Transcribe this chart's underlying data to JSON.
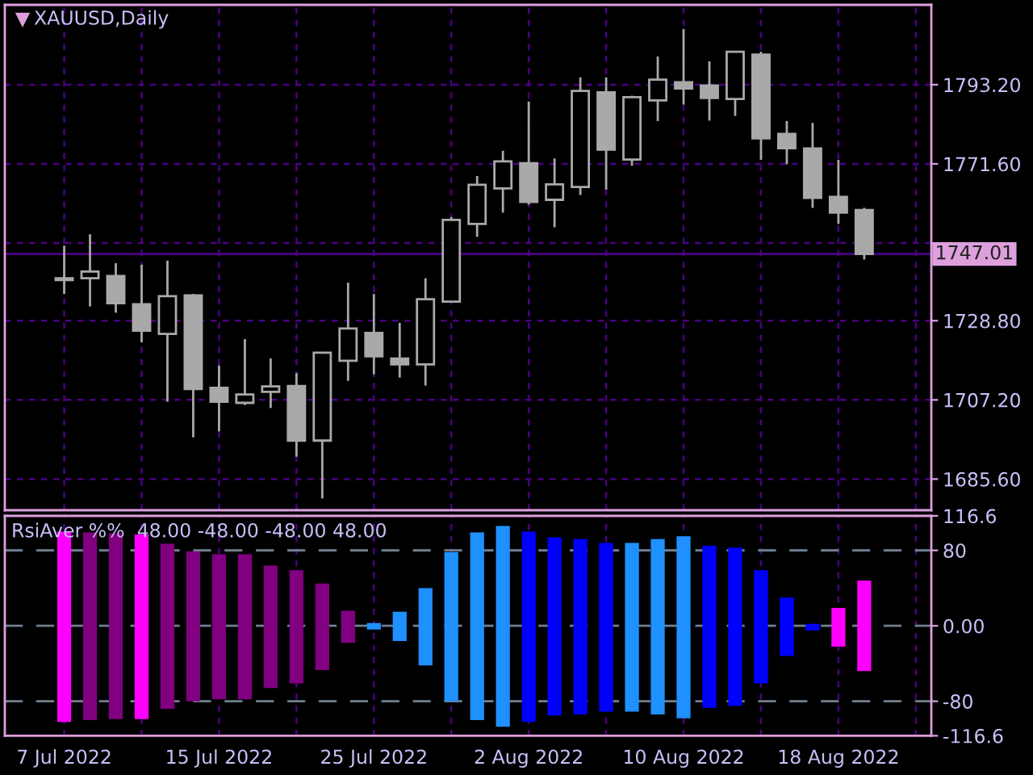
{
  "chart_data": [
    {
      "type": "candlestick",
      "title": "XAUUSD,Daily",
      "color": "#a9a9a9",
      "categories": [
        null,
        null,
        null,
        null,
        null,
        null,
        null,
        null,
        null,
        null,
        null,
        null,
        null,
        null,
        null,
        null,
        null,
        null,
        null,
        null,
        null,
        null,
        null,
        null,
        null,
        null,
        null,
        null,
        null,
        null,
        null,
        null
      ],
      "ohlc": [
        [
          1740.4,
          1749.3,
          1736.1,
          1739.9
        ],
        [
          1740.4,
          1752.4,
          1732.7,
          1742.2
        ],
        [
          1741.0,
          1744.5,
          1731.0,
          1733.6
        ],
        [
          1733.3,
          1744.1,
          1722.9,
          1726.1
        ],
        [
          1725.2,
          1745.2,
          1706.7,
          1735.5
        ],
        [
          1735.7,
          1736.1,
          1697.0,
          1710.2
        ],
        [
          1710.5,
          1716.6,
          1698.6,
          1706.7
        ],
        [
          1706.4,
          1723.8,
          1705.8,
          1708.7
        ],
        [
          1709.4,
          1718.5,
          1705.0,
          1710.9
        ],
        [
          1711.0,
          1714.5,
          1691.7,
          1696.1
        ],
        [
          1696.1,
          1720.1,
          1680.3,
          1720.1
        ],
        [
          1717.9,
          1739.2,
          1712.4,
          1726.7
        ],
        [
          1725.5,
          1736.1,
          1714.2,
          1719.1
        ],
        [
          1718.5,
          1728.2,
          1713.3,
          1716.9
        ],
        [
          1716.9,
          1740.4,
          1711.1,
          1734.7
        ],
        [
          1734.0,
          1757.1,
          1734.0,
          1756.3
        ],
        [
          1755.2,
          1768.3,
          1751.7,
          1765.9
        ],
        [
          1764.9,
          1775.2,
          1758.3,
          1772.3
        ],
        [
          1771.8,
          1788.6,
          1760.5,
          1761.2
        ],
        [
          1761.8,
          1773.1,
          1754.3,
          1766.0
        ],
        [
          1765.3,
          1795.2,
          1763.1,
          1791.5
        ],
        [
          1791.1,
          1795.2,
          1764.6,
          1775.5
        ],
        [
          1772.8,
          1790.2,
          1771.1,
          1789.8
        ],
        [
          1788.9,
          1800.9,
          1783.3,
          1794.6
        ],
        [
          1793.9,
          1808.4,
          1787.8,
          1792.2
        ],
        [
          1793.0,
          1799.6,
          1783.4,
          1789.6
        ],
        [
          1789.3,
          1802.2,
          1784.7,
          1802.2
        ],
        [
          1801.4,
          1802.2,
          1772.7,
          1778.6
        ],
        [
          1779.8,
          1783.3,
          1771.5,
          1775.9
        ],
        [
          1775.8,
          1782.8,
          1759.6,
          1762.3
        ],
        [
          1762.6,
          1772.7,
          1755.2,
          1758.3
        ],
        [
          1759.0,
          1759.6,
          1745.5,
          1747.01
        ]
      ],
      "ylim": [
        1677.1,
        1815.0
      ],
      "yticks": [
        {
          "value": 1685.6,
          "label": "1685.60"
        },
        {
          "value": 1707.2,
          "label": "1707.20"
        },
        {
          "value": 1728.8,
          "label": "1728.80"
        },
        {
          "value": 1750.0,
          "label": null
        },
        {
          "value": 1771.6,
          "label": "1771.60"
        },
        {
          "value": 1793.2,
          "label": "1793.20"
        }
      ],
      "ref_lines": [
        {
          "axis": "y",
          "value": 1747.01,
          "label": "1747.01",
          "color": "#4b0082",
          "line_style": "solid"
        }
      ],
      "grid": true,
      "tick_labels": "y"
    },
    {
      "type": "bar",
      "title": "RsiAver %%  48.00 -48.00 -48.00 48.00",
      "categories": [
        "7 Jul 2022",
        null,
        null,
        null,
        null,
        null,
        "15 Jul 2022",
        null,
        null,
        null,
        null,
        null,
        "25 Jul 2022",
        null,
        null,
        null,
        null,
        null,
        "2 Aug 2022",
        null,
        null,
        null,
        null,
        null,
        "10 Aug 2022",
        null,
        null,
        null,
        null,
        null,
        "18 Aug 2022",
        null
      ],
      "values": [
        202,
        199,
        197,
        196,
        175,
        159,
        154,
        154,
        130,
        120,
        92,
        34,
        7,
        31,
        82,
        158,
        199,
        213,
        202,
        189,
        186,
        179,
        179,
        186,
        193,
        172,
        168,
        120,
        62,
        7,
        41,
        96
      ],
      "base": [
        -102,
        -100,
        -99,
        -99,
        -88,
        -80,
        -78,
        -78,
        -66,
        -61,
        -47,
        -18,
        -4,
        -16,
        -42,
        -80,
        -100,
        -107,
        -102,
        -95,
        -94,
        -91,
        -91,
        -94,
        -98,
        -87,
        -85,
        -61,
        -32,
        -5,
        -22,
        -48
      ],
      "colors": [
        "#ff00ff",
        "#800080",
        "#800080",
        "#ff00ff",
        "#800080",
        "#800080",
        "#800080",
        "#800080",
        "#800080",
        "#800080",
        "#800080",
        "#800080",
        "#1e90ff",
        "#1e90ff",
        "#1e90ff",
        "#1e90ff",
        "#1e90ff",
        "#1e90ff",
        "#0000ff",
        "#0000ff",
        "#0000ff",
        "#0000ff",
        "#1e90ff",
        "#1e90ff",
        "#1e90ff",
        "#0000ff",
        "#0000ff",
        "#0000ff",
        "#0000ff",
        "#0000ff",
        "#ff00ff",
        "#ff00ff"
      ],
      "ylim": [
        -116.6,
        116.6
      ],
      "yticks": [
        -116.6,
        -80,
        {
          "value": 0,
          "label": "0.00"
        },
        80,
        116.6
      ],
      "ref_lines": [
        {
          "axis": "y",
          "value": 80,
          "color": "#708090",
          "line_style": "dashed"
        },
        {
          "axis": "y",
          "value": 0,
          "color": "#708090",
          "line_style": "dashed"
        },
        {
          "axis": "y",
          "value": -80,
          "color": "#708090",
          "line_style": "dashed"
        }
      ],
      "grid": "x"
    }
  ]
}
